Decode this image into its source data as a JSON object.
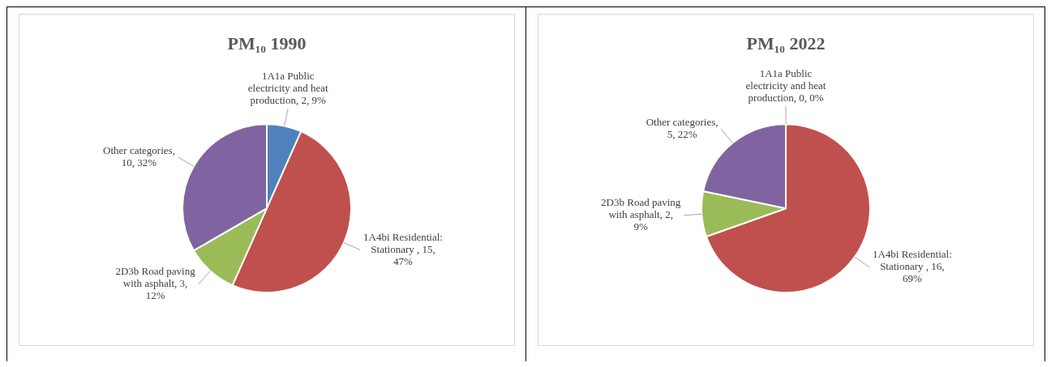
{
  "chart_data": [
    {
      "type": "pie",
      "title": "PM₁₀ 1990",
      "categories": [
        "1A1a Public electricity and heat production",
        "1A4bi Residential: Stationary ",
        "2D3b Road paving with asphalt",
        "Other categories"
      ],
      "values": [
        2,
        15,
        3,
        10
      ],
      "value_labels": [
        ", 2, 9%",
        ", 15, 47%",
        ", 3, 12%",
        ", 10, 32%"
      ],
      "colors": [
        "#4f81bd",
        "#c0504d",
        "#9bbb59",
        "#8064a2"
      ],
      "legend": false
    },
    {
      "type": "pie",
      "title": "PM₁₀ 2022",
      "categories": [
        "1A1a Public electricity and heat production",
        "1A4bi Residential: Stationary ",
        "2D3b Road paving with asphalt",
        "Other categories"
      ],
      "values": [
        0,
        16,
        2,
        5
      ],
      "value_labels": [
        ", 0, 0%",
        ", 16, 69%",
        ", 2, 9%",
        ", 5, 22%"
      ],
      "colors": [
        "#4f81bd",
        "#c0504d",
        "#9bbb59",
        "#8064a2"
      ],
      "legend": false
    }
  ]
}
